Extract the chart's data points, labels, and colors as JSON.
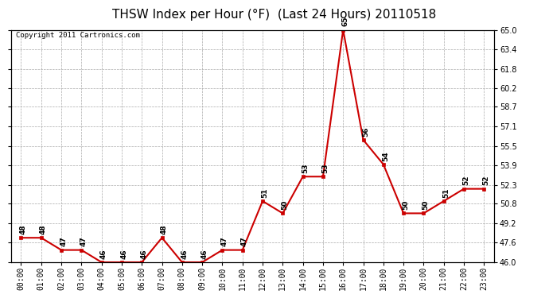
{
  "title": "THSW Index per Hour (°F)  (Last 24 Hours) 20110518",
  "copyright": "Copyright 2011 Cartronics.com",
  "x_labels": [
    "00:00",
    "01:00",
    "02:00",
    "03:00",
    "04:00",
    "05:00",
    "06:00",
    "07:00",
    "08:00",
    "09:00",
    "10:00",
    "11:00",
    "12:00",
    "13:00",
    "14:00",
    "15:00",
    "16:00",
    "17:00",
    "18:00",
    "19:00",
    "20:00",
    "21:00",
    "22:00",
    "23:00"
  ],
  "y_values": [
    48,
    48,
    47,
    47,
    46,
    46,
    46,
    48,
    46,
    46,
    47,
    47,
    51,
    50,
    53,
    53,
    65,
    56,
    54,
    50,
    50,
    51,
    52,
    52
  ],
  "line_color": "#cc0000",
  "marker_color": "#cc0000",
  "bg_color": "#ffffff",
  "grid_color": "#aaaaaa",
  "ylim": [
    46.0,
    65.0
  ],
  "yticks": [
    46.0,
    47.6,
    49.2,
    50.8,
    52.3,
    53.9,
    55.5,
    57.1,
    58.7,
    60.2,
    61.8,
    63.4,
    65.0
  ],
  "title_fontsize": 11,
  "label_fontsize": 7,
  "copyright_fontsize": 6.5,
  "annot_fontsize": 6.5
}
